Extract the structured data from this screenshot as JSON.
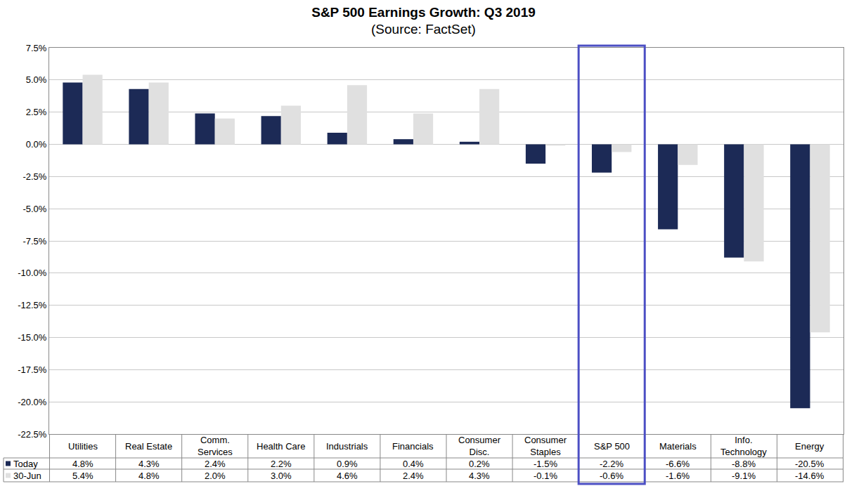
{
  "chart_data": {
    "type": "bar",
    "title": "S&P 500 Earnings Growth: Q3 2019",
    "subtitle": "(Source: FactSet)",
    "categories": [
      "Utilities",
      "Real Estate",
      "Comm. Services",
      "Health Care",
      "Industrials",
      "Financials",
      "Consumer Disc.",
      "Consumer Staples",
      "S&P 500",
      "Materials",
      "Info. Technology",
      "Energy"
    ],
    "series": [
      {
        "name": "Today",
        "color": "#1c2a56",
        "values": [
          4.8,
          4.3,
          2.4,
          2.2,
          0.9,
          0.4,
          0.2,
          -1.5,
          -2.2,
          -6.6,
          -8.8,
          -20.5
        ],
        "value_labels": [
          "4.8%",
          "4.3%",
          "2.4%",
          "2.2%",
          "0.9%",
          "0.4%",
          "0.2%",
          "-1.5%",
          "-2.2%",
          "-6.6%",
          "-8.8%",
          "-20.5%"
        ]
      },
      {
        "name": "30-Jun",
        "color": "#e0e0e0",
        "values": [
          5.4,
          4.8,
          2.0,
          3.0,
          4.6,
          2.4,
          4.3,
          -0.1,
          -0.6,
          -1.6,
          -9.1,
          -14.6
        ],
        "value_labels": [
          "5.4%",
          "4.8%",
          "2.0%",
          "3.0%",
          "4.6%",
          "2.4%",
          "4.3%",
          "-0.1%",
          "-0.6%",
          "-1.6%",
          "-9.1%",
          "-14.6%"
        ]
      }
    ],
    "ylim": [
      -22.5,
      7.5
    ],
    "yticks": [
      {
        "value": -22.5,
        "label": "-22.5%"
      },
      {
        "value": -20,
        "label": "-20.0%"
      },
      {
        "value": -17.5,
        "label": "-17.5%"
      },
      {
        "value": -15,
        "label": "-15.0%"
      },
      {
        "value": -12.5,
        "label": "-12.5%"
      },
      {
        "value": -10,
        "label": "-10.0%"
      },
      {
        "value": -7.5,
        "label": "-7.5%"
      },
      {
        "value": -5,
        "label": "-5.0%"
      },
      {
        "value": -2.5,
        "label": "-2.5%"
      },
      {
        "value": 0,
        "label": "0.0%"
      },
      {
        "value": 2.5,
        "label": "2.5%"
      },
      {
        "value": 5,
        "label": "5.0%"
      },
      {
        "value": 7.5,
        "label": "7.5%"
      }
    ],
    "grid": true
  }
}
